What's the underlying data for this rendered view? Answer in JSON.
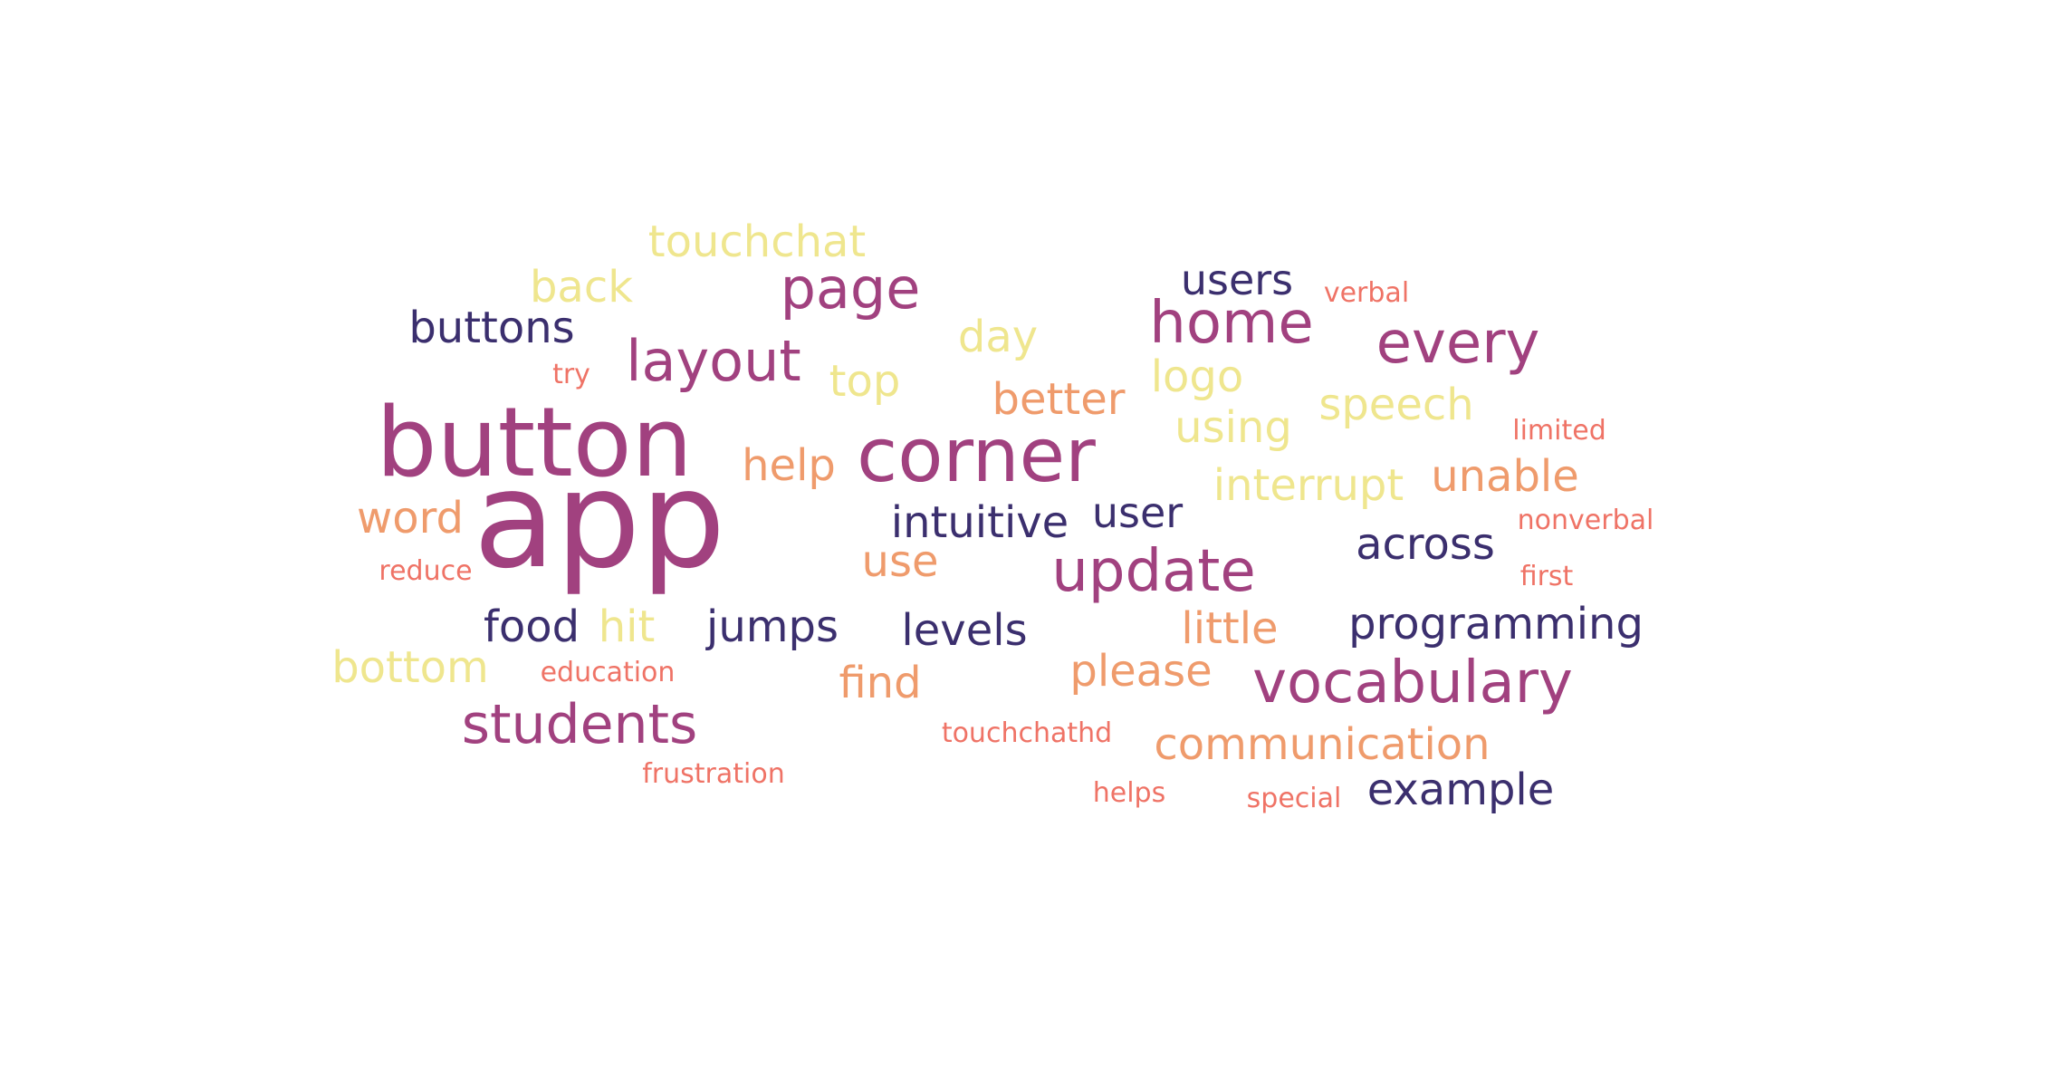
{
  "colors": {
    "navy": "#3b2f6e",
    "plum": "#a1417f",
    "orange": "#ef9b6c",
    "yellow": "#efe68e",
    "salmon": "#ef7366"
  },
  "words": [
    {
      "text": "app",
      "color": "plum",
      "weight": 10
    },
    {
      "text": "button",
      "color": "plum",
      "weight": 9
    },
    {
      "text": "corner",
      "color": "plum",
      "weight": 8
    },
    {
      "text": "home",
      "color": "plum",
      "weight": 6
    },
    {
      "text": "every",
      "color": "plum",
      "weight": 6
    },
    {
      "text": "vocabulary",
      "color": "plum",
      "weight": 6
    },
    {
      "text": "students",
      "color": "plum",
      "weight": 6
    },
    {
      "text": "update",
      "color": "plum",
      "weight": 6
    },
    {
      "text": "layout",
      "color": "plum",
      "weight": 6
    },
    {
      "text": "page",
      "color": "plum",
      "weight": 6
    },
    {
      "text": "programming",
      "color": "navy",
      "weight": 4
    },
    {
      "text": "intuitive",
      "color": "navy",
      "weight": 4
    },
    {
      "text": "buttons",
      "color": "navy",
      "weight": 4
    },
    {
      "text": "users",
      "color": "navy",
      "weight": 4
    },
    {
      "text": "user",
      "color": "navy",
      "weight": 4
    },
    {
      "text": "across",
      "color": "navy",
      "weight": 4
    },
    {
      "text": "food",
      "color": "navy",
      "weight": 4
    },
    {
      "text": "jumps",
      "color": "navy",
      "weight": 4
    },
    {
      "text": "levels",
      "color": "navy",
      "weight": 4
    },
    {
      "text": "example",
      "color": "navy",
      "weight": 4
    },
    {
      "text": "touchchat",
      "color": "yellow",
      "weight": 4
    },
    {
      "text": "back",
      "color": "yellow",
      "weight": 4
    },
    {
      "text": "day",
      "color": "yellow",
      "weight": 4
    },
    {
      "text": "top",
      "color": "yellow",
      "weight": 4
    },
    {
      "text": "logo",
      "color": "yellow",
      "weight": 4
    },
    {
      "text": "using",
      "color": "yellow",
      "weight": 4
    },
    {
      "text": "speech",
      "color": "yellow",
      "weight": 4
    },
    {
      "text": "interrupt",
      "color": "yellow",
      "weight": 4
    },
    {
      "text": "hit",
      "color": "yellow",
      "weight": 4
    },
    {
      "text": "bottom",
      "color": "yellow",
      "weight": 4
    },
    {
      "text": "help",
      "color": "orange",
      "weight": 4
    },
    {
      "text": "better",
      "color": "orange",
      "weight": 4
    },
    {
      "text": "word",
      "color": "orange",
      "weight": 4
    },
    {
      "text": "use",
      "color": "orange",
      "weight": 4
    },
    {
      "text": "unable",
      "color": "orange",
      "weight": 4
    },
    {
      "text": "little",
      "color": "orange",
      "weight": 4
    },
    {
      "text": "please",
      "color": "orange",
      "weight": 4
    },
    {
      "text": "find",
      "color": "orange",
      "weight": 4
    },
    {
      "text": "communication",
      "color": "orange",
      "weight": 4
    },
    {
      "text": "verbal",
      "color": "salmon",
      "weight": 2
    },
    {
      "text": "try",
      "color": "salmon",
      "weight": 2
    },
    {
      "text": "limited",
      "color": "salmon",
      "weight": 2
    },
    {
      "text": "nonverbal",
      "color": "salmon",
      "weight": 2
    },
    {
      "text": "reduce",
      "color": "salmon",
      "weight": 2
    },
    {
      "text": "first",
      "color": "salmon",
      "weight": 2
    },
    {
      "text": "education",
      "color": "salmon",
      "weight": 2
    },
    {
      "text": "touchchathd",
      "color": "salmon",
      "weight": 2
    },
    {
      "text": "frustration",
      "color": "salmon",
      "weight": 2
    },
    {
      "text": "helps",
      "color": "salmon",
      "weight": 2
    },
    {
      "text": "special",
      "color": "salmon",
      "weight": 2
    }
  ]
}
